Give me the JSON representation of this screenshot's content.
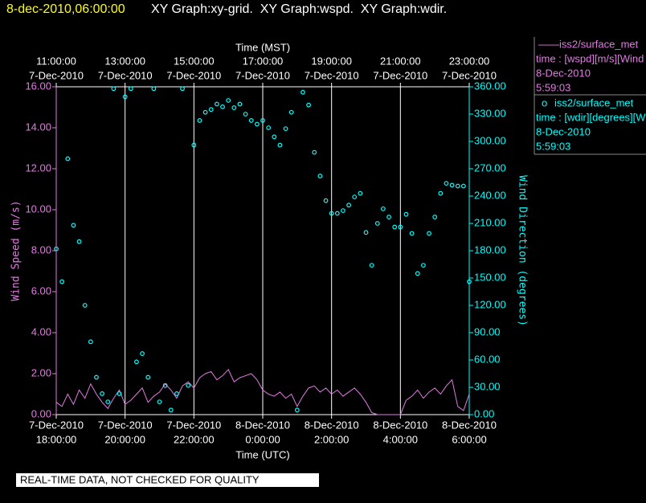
{
  "header": {
    "timestamp": "8-dec-2010,06:00:00",
    "graphs": "XY Graph:xy-grid.  XY Graph:wspd.  XY Graph:wdir."
  },
  "legend": [
    {
      "symbol": "——",
      "name": "iss2/surface_met",
      "detail": "time : [wspd][m/s][Wind",
      "date": "8-Dec-2010",
      "time": "5:59:03"
    },
    {
      "symbol": "o",
      "name": "iss2/surface_met",
      "detail": "time : [wdir][degrees][W",
      "date": "8-Dec-2010",
      "time": "5:59:03"
    }
  ],
  "footer": "REAL-TIME DATA, NOT CHECKED FOR QUALITY",
  "chart_data": {
    "type": "line",
    "xlabel": "Time (UTC)",
    "x2label": "Time (MST)",
    "ylabel": "Wind Speed (m/s)",
    "y2label": "Wind Direction (degrees)",
    "xlim": [
      "2010-12-07T18:00Z",
      "2010-12-08T06:00Z"
    ],
    "xticks": [
      {
        "value": "2010-12-07T18:00Z",
        "label": [
          "7-Dec-2010",
          "18:00:00"
        ]
      },
      {
        "value": "2010-12-07T20:00Z",
        "label": [
          "7-Dec-2010",
          "20:00:00"
        ]
      },
      {
        "value": "2010-12-07T22:00Z",
        "label": [
          "7-Dec-2010",
          "22:00:00"
        ]
      },
      {
        "value": "2010-12-08T00:00Z",
        "label": [
          "8-Dec-2010",
          "0:00:00"
        ]
      },
      {
        "value": "2010-12-08T02:00Z",
        "label": [
          "8-Dec-2010",
          "2:00:00"
        ]
      },
      {
        "value": "2010-12-08T04:00Z",
        "label": [
          "8-Dec-2010",
          "4:00:00"
        ]
      },
      {
        "value": "2010-12-08T06:00Z",
        "label": [
          "8-Dec-2010",
          "6:00:00"
        ]
      }
    ],
    "x2ticks": [
      {
        "value": "2010-12-07T18:00Z",
        "label": [
          "11:00:00",
          "7-Dec-2010"
        ]
      },
      {
        "value": "2010-12-07T20:00Z",
        "label": [
          "13:00:00",
          "7-Dec-2010"
        ]
      },
      {
        "value": "2010-12-07T22:00Z",
        "label": [
          "15:00:00",
          "7-Dec-2010"
        ]
      },
      {
        "value": "2010-12-08T00:00Z",
        "label": [
          "17:00:00",
          "7-Dec-2010"
        ]
      },
      {
        "value": "2010-12-08T02:00Z",
        "label": [
          "19:00:00",
          "7-Dec-2010"
        ]
      },
      {
        "value": "2010-12-08T04:00Z",
        "label": [
          "21:00:00",
          "7-Dec-2010"
        ]
      },
      {
        "value": "2010-12-08T06:00Z",
        "label": [
          "23:00:00",
          "7-Dec-2010"
        ]
      }
    ],
    "ylim": [
      0,
      16
    ],
    "yticks": [
      {
        "value": 0,
        "label": "0.00"
      },
      {
        "value": 2,
        "label": "2.00"
      },
      {
        "value": 4,
        "label": "4.00"
      },
      {
        "value": 6,
        "label": "6.00"
      },
      {
        "value": 8,
        "label": "8.00"
      },
      {
        "value": 10,
        "label": "10.00"
      },
      {
        "value": 12,
        "label": "12.00"
      },
      {
        "value": 14,
        "label": "14.00"
      },
      {
        "value": 16,
        "label": "16.00"
      }
    ],
    "y2lim": [
      0,
      360
    ],
    "y2ticks": [
      {
        "value": 0,
        "label": "0.00"
      },
      {
        "value": 30,
        "label": "30.00"
      },
      {
        "value": 60,
        "label": "60.00"
      },
      {
        "value": 90,
        "label": "90.00"
      },
      {
        "value": 120,
        "label": "120.00"
      },
      {
        "value": 150,
        "label": "150.00"
      },
      {
        "value": 180,
        "label": "180.00"
      },
      {
        "value": 210,
        "label": "210.00"
      },
      {
        "value": 240,
        "label": "240.00"
      },
      {
        "value": 270,
        "label": "270.00"
      },
      {
        "value": 300,
        "label": "300.00"
      },
      {
        "value": 330,
        "label": "330.00"
      },
      {
        "value": 360,
        "label": "360.00"
      }
    ],
    "grid": "x",
    "x": [
      "2010-12-07T18:00Z",
      "2010-12-07T18:10Z",
      "2010-12-07T18:20Z",
      "2010-12-07T18:30Z",
      "2010-12-07T18:40Z",
      "2010-12-07T18:50Z",
      "2010-12-07T19:00Z",
      "2010-12-07T19:10Z",
      "2010-12-07T19:20Z",
      "2010-12-07T19:30Z",
      "2010-12-07T19:40Z",
      "2010-12-07T19:50Z",
      "2010-12-07T20:00Z",
      "2010-12-07T20:10Z",
      "2010-12-07T20:20Z",
      "2010-12-07T20:30Z",
      "2010-12-07T20:40Z",
      "2010-12-07T20:50Z",
      "2010-12-07T21:00Z",
      "2010-12-07T21:10Z",
      "2010-12-07T21:20Z",
      "2010-12-07T21:30Z",
      "2010-12-07T21:40Z",
      "2010-12-07T21:50Z",
      "2010-12-07T22:00Z",
      "2010-12-07T22:10Z",
      "2010-12-07T22:20Z",
      "2010-12-07T22:30Z",
      "2010-12-07T22:40Z",
      "2010-12-07T22:50Z",
      "2010-12-07T23:00Z",
      "2010-12-07T23:10Z",
      "2010-12-07T23:20Z",
      "2010-12-07T23:30Z",
      "2010-12-07T23:40Z",
      "2010-12-07T23:50Z",
      "2010-12-08T00:00Z",
      "2010-12-08T00:10Z",
      "2010-12-08T00:20Z",
      "2010-12-08T00:30Z",
      "2010-12-08T00:40Z",
      "2010-12-08T00:50Z",
      "2010-12-08T01:00Z",
      "2010-12-08T01:10Z",
      "2010-12-08T01:20Z",
      "2010-12-08T01:30Z",
      "2010-12-08T01:40Z",
      "2010-12-08T01:50Z",
      "2010-12-08T02:00Z",
      "2010-12-08T02:10Z",
      "2010-12-08T02:20Z",
      "2010-12-08T02:30Z",
      "2010-12-08T02:40Z",
      "2010-12-08T02:50Z",
      "2010-12-08T03:00Z",
      "2010-12-08T03:10Z",
      "2010-12-08T03:20Z",
      "2010-12-08T03:30Z",
      "2010-12-08T03:40Z",
      "2010-12-08T03:50Z",
      "2010-12-08T04:00Z",
      "2010-12-08T04:10Z",
      "2010-12-08T04:20Z",
      "2010-12-08T04:30Z",
      "2010-12-08T04:40Z",
      "2010-12-08T04:50Z",
      "2010-12-08T05:00Z",
      "2010-12-08T05:10Z",
      "2010-12-08T05:20Z",
      "2010-12-08T05:30Z",
      "2010-12-08T05:40Z",
      "2010-12-08T05:50Z",
      "2010-12-08T06:00Z"
    ],
    "series": [
      {
        "name": "wspd",
        "style": "line",
        "color": "#e27ae2",
        "values": [
          0.6,
          0.4,
          1.0,
          0.5,
          1.2,
          0.8,
          1.5,
          1.0,
          0.6,
          0.3,
          0.8,
          1.2,
          0.5,
          0.7,
          1.0,
          1.3,
          0.6,
          0.9,
          1.1,
          1.5,
          1.2,
          0.8,
          1.4,
          1.6,
          1.3,
          1.8,
          2.0,
          2.1,
          1.7,
          1.9,
          2.2,
          1.6,
          1.8,
          1.9,
          2.0,
          1.7,
          1.2,
          1.0,
          0.9,
          1.1,
          0.8,
          1.0,
          0.4,
          0.9,
          1.3,
          1.4,
          1.1,
          1.3,
          1.0,
          1.2,
          0.9,
          1.1,
          1.3,
          1.0,
          0.6,
          0.1,
          0.0,
          0.0,
          0.0,
          0.0,
          0.0,
          0.7,
          0.9,
          1.2,
          0.8,
          1.1,
          1.3,
          1.0,
          1.4,
          1.7,
          0.4,
          0.2,
          1.0
        ]
      },
      {
        "name": "wdir",
        "style": "scatter",
        "axis": "y2",
        "color": "#00ffff",
        "values": [
          182,
          146,
          281,
          208,
          190,
          120,
          80,
          41,
          23,
          14,
          358,
          23,
          349,
          358,
          58,
          67,
          41,
          358,
          14,
          32,
          5,
          23,
          358,
          32,
          296,
          323,
          332,
          335,
          341,
          338,
          345,
          337,
          341,
          330,
          323,
          319,
          323,
          315,
          305,
          296,
          314,
          332,
          5,
          354,
          340,
          288,
          262,
          235,
          221,
          221,
          224,
          230,
          239,
          243,
          200,
          164,
          210,
          226,
          217,
          206,
          206,
          220,
          199,
          155,
          164,
          199,
          217,
          243,
          254,
          252,
          251,
          251,
          146
        ]
      }
    ]
  }
}
